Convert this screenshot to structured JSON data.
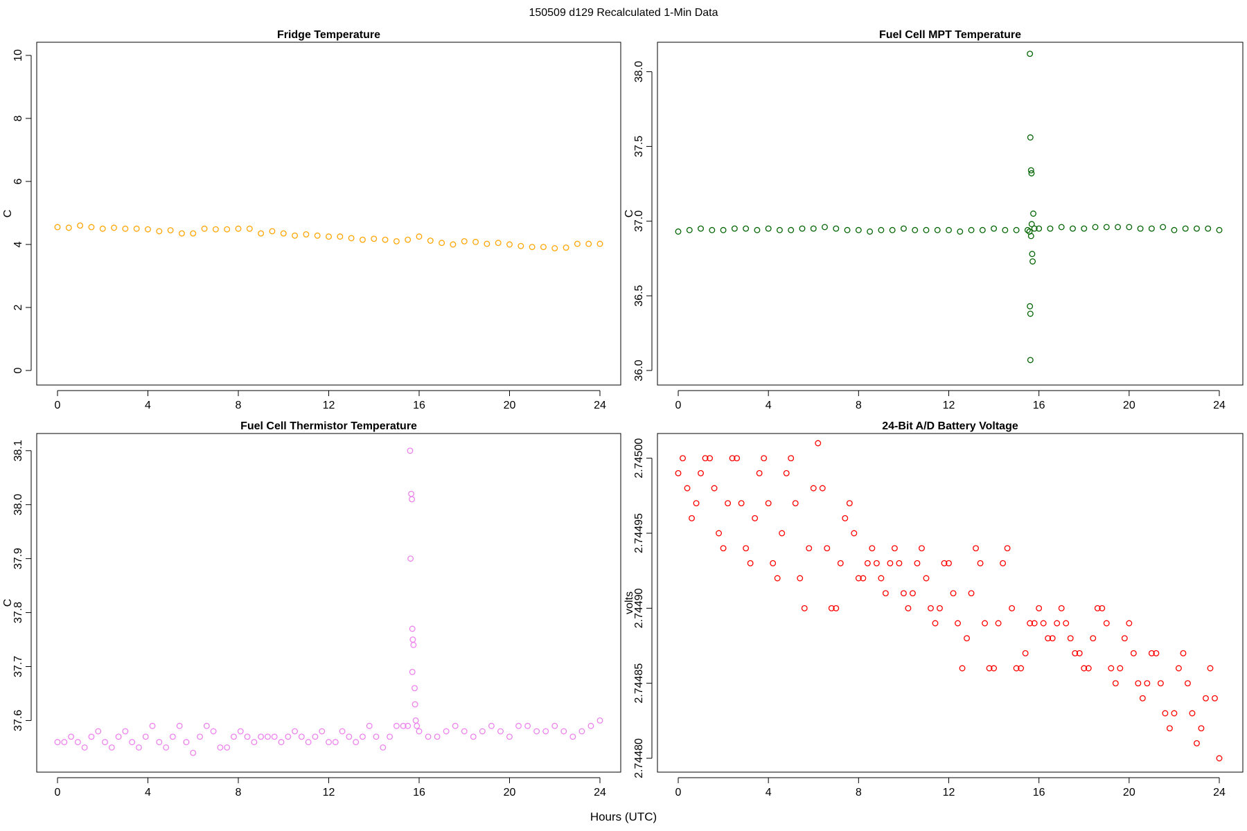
{
  "figure": {
    "title": "150509   d129   Recalculated 1-Min Data",
    "xlabel": "Hours (UTC)"
  },
  "chart_data": [
    {
      "type": "scatter",
      "title": "Fridge Temperature",
      "xlabel": "",
      "ylabel": "C",
      "xlim": [
        0,
        24
      ],
      "ylim": [
        0,
        10
      ],
      "xticks": [
        0,
        4,
        8,
        12,
        16,
        20,
        24
      ],
      "yticks": [
        0,
        2,
        4,
        6,
        8,
        10
      ],
      "ytick_labels": [
        "0",
        "2",
        "4",
        "6",
        "8",
        "10"
      ],
      "color": "#FFA500",
      "grid": false,
      "series": [
        {
          "x": [
            0,
            0.5,
            1,
            1.5,
            2,
            2.5,
            3,
            3.5,
            4,
            4.5,
            5,
            5.5,
            6,
            6.5,
            7,
            7.5,
            8,
            8.5,
            9,
            9.5,
            10,
            10.5,
            11,
            11.5,
            12,
            12.5,
            13,
            13.5,
            14,
            14.5,
            15,
            15.5,
            16,
            16.5,
            17,
            17.5,
            18,
            18.5,
            19,
            19.5,
            20,
            20.5,
            21,
            21.5,
            22,
            22.5,
            23,
            23.5,
            24
          ],
          "y": [
            4.55,
            4.53,
            4.6,
            4.55,
            4.5,
            4.53,
            4.5,
            4.5,
            4.48,
            4.42,
            4.45,
            4.35,
            4.35,
            4.5,
            4.48,
            4.48,
            4.5,
            4.5,
            4.35,
            4.42,
            4.35,
            4.28,
            4.32,
            4.28,
            4.25,
            4.25,
            4.2,
            4.15,
            4.18,
            4.15,
            4.1,
            4.15,
            4.25,
            4.12,
            4.05,
            4.0,
            4.1,
            4.08,
            4.02,
            4.05,
            4.0,
            3.95,
            3.92,
            3.92,
            3.88,
            3.9,
            4.02,
            4.02,
            4.02
          ]
        }
      ]
    },
    {
      "type": "scatter",
      "title": "Fuel Cell MPT Temperature",
      "xlabel": "",
      "ylabel": "C",
      "xlim": [
        0,
        24
      ],
      "ylim": [
        36.0,
        38.1
      ],
      "xticks": [
        0,
        4,
        8,
        12,
        16,
        20,
        24
      ],
      "yticks": [
        36.0,
        36.5,
        37.0,
        37.5,
        38.0
      ],
      "ytick_labels": [
        "36.0",
        "36.5",
        "37.0",
        "37.5",
        "38.0"
      ],
      "color": "#006400",
      "grid": false,
      "series": [
        {
          "x": [
            0,
            0.5,
            1,
            1.5,
            2,
            2.5,
            3,
            3.5,
            4,
            4.5,
            5,
            5.5,
            6,
            6.5,
            7,
            7.5,
            8,
            8.5,
            9,
            9.5,
            10,
            10.5,
            11,
            11.5,
            12,
            12.5,
            13,
            13.5,
            14,
            14.5,
            15,
            15.5,
            16,
            16.5,
            17,
            17.5,
            18,
            18.5,
            19,
            19.5,
            20,
            20.5,
            21,
            21.5,
            22,
            22.5,
            23,
            23.5,
            24
          ],
          "y": [
            36.93,
            36.94,
            36.95,
            36.94,
            36.94,
            36.95,
            36.95,
            36.94,
            36.95,
            36.94,
            36.94,
            36.95,
            36.95,
            36.96,
            36.95,
            36.94,
            36.94,
            36.93,
            36.94,
            36.94,
            36.95,
            36.94,
            36.94,
            36.94,
            36.94,
            36.93,
            36.94,
            36.94,
            36.95,
            36.94,
            36.94,
            36.94,
            36.95,
            36.95,
            36.96,
            36.95,
            36.95,
            36.96,
            36.96,
            36.96,
            36.96,
            36.95,
            36.95,
            36.96,
            36.94,
            36.95,
            36.95,
            36.95,
            36.94
          ]
        },
        {
          "x": [
            15.6,
            15.62,
            15.65,
            15.67,
            15.6,
            15.62,
            15.7,
            15.72,
            15.62,
            15.65,
            15.58,
            15.75,
            15.68,
            15.8
          ],
          "y": [
            38.12,
            37.56,
            37.34,
            37.32,
            36.43,
            36.38,
            36.78,
            36.73,
            36.07,
            36.9,
            36.93,
            37.05,
            36.98,
            36.95
          ]
        }
      ]
    },
    {
      "type": "scatter",
      "title": "Fuel Cell Thermistor Temperature",
      "xlabel": "",
      "ylabel": "C",
      "xlim": [
        0,
        24
      ],
      "ylim": [
        37.53,
        38.11
      ],
      "xticks": [
        0,
        4,
        8,
        12,
        16,
        20,
        24
      ],
      "yticks": [
        37.6,
        37.7,
        37.8,
        37.9,
        38.0,
        38.1
      ],
      "ytick_labels": [
        "37.6",
        "37.7",
        "37.8",
        "37.9",
        "38.0",
        "38.1"
      ],
      "color": "#EE82EE",
      "grid": false,
      "series": [
        {
          "x": [
            0,
            0.3,
            0.6,
            0.9,
            1.2,
            1.5,
            1.8,
            2.1,
            2.4,
            2.7,
            3.0,
            3.3,
            3.6,
            3.9,
            4.2,
            4.5,
            4.8,
            5.1,
            5.4,
            5.7,
            6.0,
            6.3,
            6.6,
            6.9,
            7.2,
            7.5,
            7.8,
            8.1,
            8.4,
            8.7,
            9.0,
            9.3,
            9.6,
            9.9,
            10.2,
            10.5,
            10.8,
            11.1,
            11.4,
            11.7,
            12.0,
            12.3,
            12.6,
            12.9,
            13.2,
            13.5,
            13.8,
            14.1,
            14.4,
            14.7,
            15.0,
            15.3,
            15.5
          ],
          "y": [
            37.56,
            37.56,
            37.57,
            37.56,
            37.55,
            37.57,
            37.58,
            37.56,
            37.55,
            37.57,
            37.58,
            37.56,
            37.55,
            37.57,
            37.59,
            37.56,
            37.55,
            37.57,
            37.59,
            37.56,
            37.54,
            37.57,
            37.59,
            37.58,
            37.55,
            37.55,
            37.57,
            37.58,
            37.57,
            37.56,
            37.57,
            37.57,
            37.57,
            37.56,
            37.57,
            37.58,
            37.57,
            37.56,
            37.57,
            37.58,
            37.56,
            37.56,
            37.58,
            37.57,
            37.56,
            37.57,
            37.59,
            37.57,
            37.55,
            37.57,
            37.59,
            37.59,
            37.59
          ]
        },
        {
          "x": [
            15.6,
            15.65,
            15.68,
            15.62,
            15.7,
            15.72,
            15.75,
            15.7,
            15.8,
            15.82,
            15.85,
            15.9
          ],
          "y": [
            38.1,
            38.02,
            38.01,
            37.9,
            37.77,
            37.75,
            37.74,
            37.69,
            37.66,
            37.63,
            37.6,
            37.59
          ]
        },
        {
          "x": [
            16.0,
            16.4,
            16.8,
            17.2,
            17.6,
            18.0,
            18.4,
            18.8,
            19.2,
            19.6,
            20.0,
            20.4,
            20.8,
            21.2,
            21.6,
            22.0,
            22.4,
            22.8,
            23.2,
            23.6,
            24.0
          ],
          "y": [
            37.58,
            37.57,
            37.57,
            37.58,
            37.59,
            37.58,
            37.57,
            37.58,
            37.59,
            37.58,
            37.57,
            37.59,
            37.59,
            37.58,
            37.58,
            37.59,
            37.58,
            37.57,
            37.58,
            37.59,
            37.6
          ]
        }
      ]
    },
    {
      "type": "scatter",
      "title": "24-Bit A/D Battery Voltage",
      "xlabel": "",
      "ylabel": "volts",
      "xlim": [
        0,
        24
      ],
      "ylim": [
        2.7448,
        2.74501
      ],
      "xticks": [
        0,
        4,
        8,
        12,
        16,
        20,
        24
      ],
      "yticks": [
        2.7448,
        2.74485,
        2.7449,
        2.74495,
        2.745
      ],
      "ytick_labels": [
        "2.74480",
        "2.74485",
        "2.74490",
        "2.74495",
        "2.74500"
      ],
      "color": "#FF0000",
      "grid": false,
      "series": [
        {
          "x": [
            0,
            0.2,
            0.4,
            0.6,
            0.8,
            1.0,
            1.2,
            1.4,
            1.6,
            1.8,
            2.0,
            2.2,
            2.4,
            2.6,
            2.8,
            3.0,
            3.2,
            3.4,
            3.6,
            3.8,
            4.0,
            4.2,
            4.4,
            4.6,
            4.8,
            5.0,
            5.2,
            5.4,
            5.6,
            5.8,
            6.0,
            6.2,
            6.4,
            6.6,
            6.8,
            7.0,
            7.2,
            7.4,
            7.6,
            7.8,
            8.0,
            8.2,
            8.4,
            8.6,
            8.8,
            9.0,
            9.2,
            9.4,
            9.6,
            9.8,
            10.0,
            10.2,
            10.4,
            10.6,
            10.8,
            11.0,
            11.2,
            11.4,
            11.6,
            11.8,
            12.0,
            12.2,
            12.4,
            12.6,
            12.8,
            13.0,
            13.2,
            13.4,
            13.6,
            13.8,
            14.0,
            14.2,
            14.4,
            14.6,
            14.8,
            15.0,
            15.2,
            15.4
          ],
          "y": [
            2.74499,
            2.745,
            2.74498,
            2.74496,
            2.74497,
            2.74499,
            2.745,
            2.745,
            2.74498,
            2.74495,
            2.74494,
            2.74497,
            2.745,
            2.745,
            2.74497,
            2.74494,
            2.74493,
            2.74496,
            2.74499,
            2.745,
            2.74497,
            2.74493,
            2.74492,
            2.74495,
            2.74499,
            2.745,
            2.74497,
            2.74492,
            2.7449,
            2.74494,
            2.74498,
            2.74501,
            2.74498,
            2.74494,
            2.7449,
            2.7449,
            2.74493,
            2.74496,
            2.74497,
            2.74495,
            2.74492,
            2.74492,
            2.74493,
            2.74494,
            2.74493,
            2.74492,
            2.74491,
            2.74493,
            2.74494,
            2.74493,
            2.74491,
            2.7449,
            2.74491,
            2.74493,
            2.74494,
            2.74492,
            2.7449,
            2.74489,
            2.7449,
            2.74493,
            2.74493,
            2.74491,
            2.74489,
            2.74486,
            2.74488,
            2.74491,
            2.74494,
            2.74493,
            2.74489,
            2.74486,
            2.74486,
            2.74489,
            2.74493,
            2.74494,
            2.7449,
            2.74486,
            2.74486,
            2.74487
          ]
        },
        {
          "x": [
            15.6,
            15.8,
            16.0,
            16.2,
            16.4,
            16.6,
            16.8,
            17.0,
            17.2,
            17.4,
            17.6,
            17.8,
            18.0,
            18.2,
            18.4,
            18.6,
            18.8,
            19.0,
            19.2,
            19.4,
            19.6,
            19.8,
            20.0,
            20.2,
            20.4,
            20.6,
            20.8,
            21.0,
            21.2,
            21.4,
            21.6,
            21.8,
            22.0,
            22.2,
            22.4,
            22.6,
            22.8,
            23.0,
            23.2,
            23.4,
            23.6,
            23.8,
            24.0
          ],
          "y": [
            2.74489,
            2.74489,
            2.7449,
            2.74489,
            2.74488,
            2.74488,
            2.74489,
            2.7449,
            2.74489,
            2.74488,
            2.74487,
            2.74487,
            2.74486,
            2.74486,
            2.74488,
            2.7449,
            2.7449,
            2.74489,
            2.74486,
            2.74485,
            2.74486,
            2.74488,
            2.74489,
            2.74487,
            2.74485,
            2.74484,
            2.74485,
            2.74487,
            2.74487,
            2.74485,
            2.74483,
            2.74482,
            2.74483,
            2.74486,
            2.74487,
            2.74485,
            2.74483,
            2.74481,
            2.74482,
            2.74484,
            2.74486,
            2.74484,
            2.7448
          ]
        }
      ]
    }
  ]
}
